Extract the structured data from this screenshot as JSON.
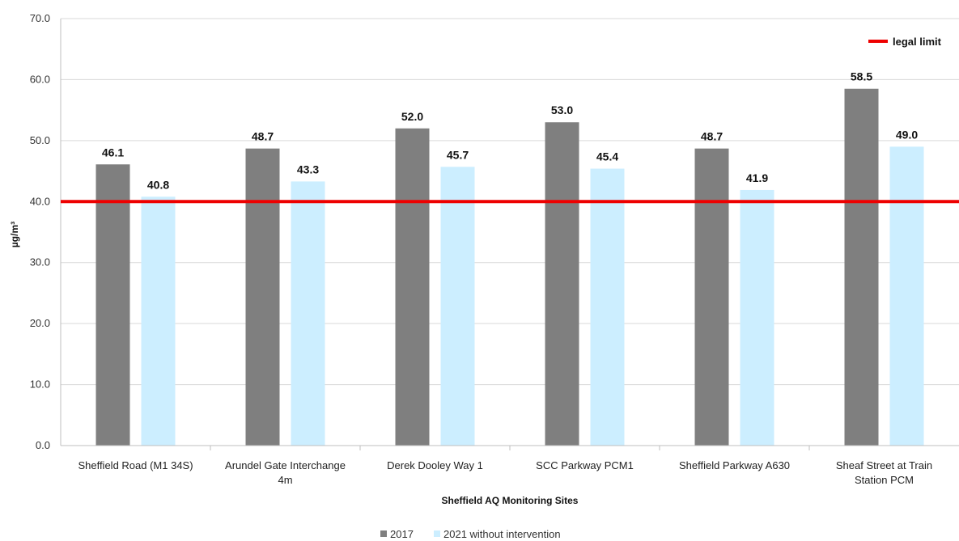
{
  "chart_data": {
    "type": "bar",
    "xlabel": "Sheffield AQ Monitoring Sites",
    "ylabel": "µg/m³",
    "ylim": [
      0,
      70
    ],
    "yticks": [
      "0.0",
      "10.0",
      "20.0",
      "30.0",
      "40.0",
      "50.0",
      "60.0",
      "70.0"
    ],
    "categories": [
      [
        "Sheffield Road (M1 34S)"
      ],
      [
        "Arundel Gate Interchange",
        "4m"
      ],
      [
        "Derek Dooley Way 1"
      ],
      [
        "SCC Parkway PCM1"
      ],
      [
        "Sheffield Parkway A630"
      ],
      [
        "Sheaf Street at Train",
        "Station PCM"
      ]
    ],
    "series": [
      {
        "name": "2017",
        "color": "#7f7f7f",
        "values": [
          46.1,
          48.7,
          52.0,
          53.0,
          48.7,
          58.5
        ],
        "labels": [
          "46.1",
          "48.7",
          "52.0",
          "53.0",
          "48.7",
          "58.5"
        ]
      },
      {
        "name": "2021 without intervention",
        "color": "#cceeff",
        "values": [
          40.8,
          43.3,
          45.7,
          45.4,
          41.9,
          49.0
        ],
        "labels": [
          "40.8",
          "43.3",
          "45.7",
          "45.4",
          "41.9",
          "49.0"
        ]
      }
    ],
    "reference_line": {
      "name": "legal limit",
      "value": 40,
      "color": "#ee0000"
    },
    "grid": true,
    "legend_position": "bottom-center"
  }
}
